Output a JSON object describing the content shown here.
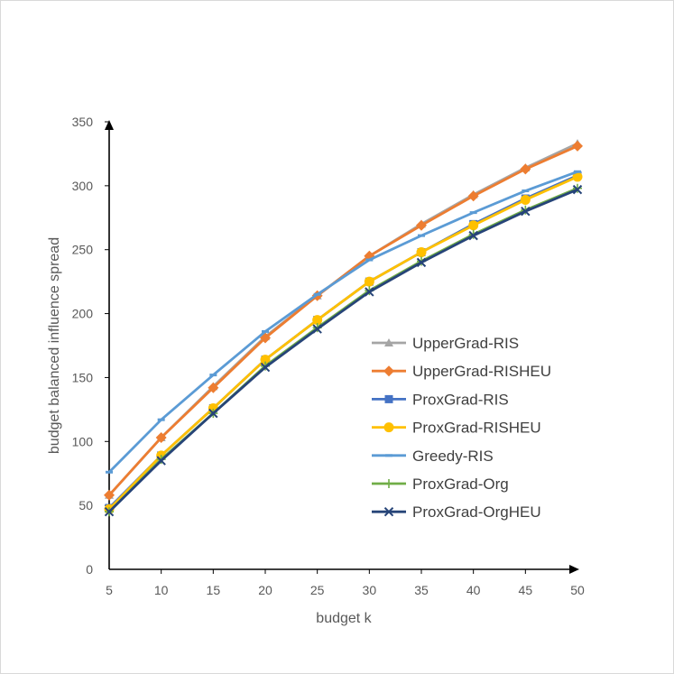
{
  "chart_data": {
    "type": "line",
    "title": "",
    "xlabel": "budget k",
    "ylabel": "budget balanced influence spread",
    "x": [
      5,
      10,
      15,
      20,
      25,
      30,
      35,
      40,
      45,
      50
    ],
    "x_ticks": [
      "5",
      "10",
      "15",
      "20",
      "25",
      "30",
      "35",
      "40",
      "45",
      "50"
    ],
    "ylim": [
      0,
      350
    ],
    "y_ticks": [
      "0",
      "50",
      "100",
      "150",
      "200",
      "250",
      "300",
      "350"
    ],
    "grid": false,
    "legend_position": "center-right",
    "series": [
      {
        "name": "UpperGrad-RIS",
        "color": "#a5a5a5",
        "marker": "triangle",
        "values": [
          58,
          103,
          143,
          182,
          214,
          245,
          270,
          293,
          314,
          333
        ]
      },
      {
        "name": "UpperGrad-RISHEU",
        "color": "#ed7d31",
        "marker": "diamond",
        "values": [
          58,
          103,
          142,
          181,
          214,
          245,
          269,
          292,
          313,
          331
        ]
      },
      {
        "name": "ProxGrad-RIS",
        "color": "#4472c4",
        "marker": "square",
        "values": [
          48,
          89,
          126,
          164,
          195,
          225,
          248,
          270,
          290,
          308
        ]
      },
      {
        "name": "ProxGrad-RISHEU",
        "color": "#ffc000",
        "marker": "circle",
        "values": [
          47,
          89,
          126,
          164,
          195,
          225,
          248,
          269,
          289,
          307
        ]
      },
      {
        "name": "Greedy-RIS",
        "color": "#5b9bd5",
        "marker": "dash",
        "values": [
          76,
          117,
          152,
          186,
          215,
          242,
          261,
          279,
          296,
          311
        ]
      },
      {
        "name": "ProxGrad-Org",
        "color": "#70ad47",
        "marker": "plus",
        "values": [
          45,
          86,
          122,
          159,
          189,
          218,
          241,
          262,
          281,
          298
        ]
      },
      {
        "name": "ProxGrad-OrgHEU",
        "color": "#264478",
        "marker": "x",
        "values": [
          45,
          85,
          122,
          158,
          188,
          217,
          240,
          261,
          280,
          297
        ]
      }
    ]
  }
}
